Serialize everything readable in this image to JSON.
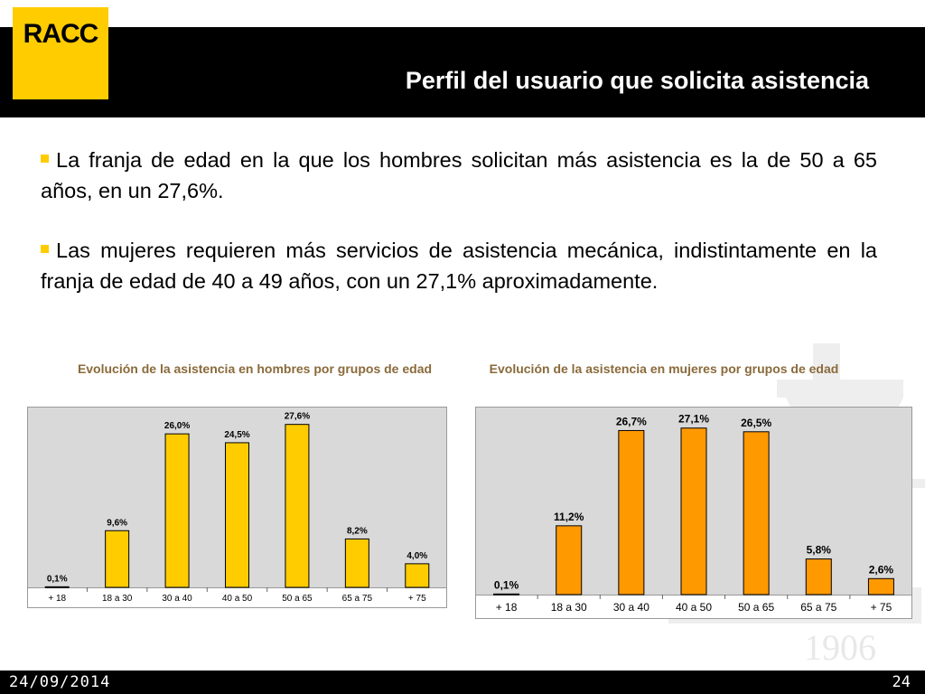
{
  "header": {
    "logo_text": "RACC",
    "title": "Perfil del usuario que solicita asistencia"
  },
  "bullets": [
    "La franja de edad en la que los hombres solicitan más asistencia es la de 50 a 65 años, en un 27,6%.",
    "Las mujeres requieren más servicios de asistencia mecánica, indistintamente en la franja de edad de 40 a 49 años, con un 27,1% aproximadamente."
  ],
  "watermark_text": "1906",
  "colors": {
    "accent": "#ffcc00",
    "men_bar": "#ffcc00",
    "women_bar": "#ff9900",
    "plot_bg": "#d9d9d9"
  },
  "chart_data": [
    {
      "type": "bar",
      "title": "Evolución de la asistencia en hombres por grupos de edad",
      "categories": [
        "+ 18",
        "18 a 30",
        "30 a 40",
        "40 a 50",
        "50 a 65",
        "65 a 75",
        "+ 75"
      ],
      "values": [
        0.1,
        9.6,
        26.0,
        24.5,
        27.6,
        8.2,
        4.0
      ],
      "labels": [
        "0,1%",
        "9,6%",
        "26,0%",
        "24,5%",
        "27,6%",
        "8,2%",
        "4,0%"
      ],
      "ylim": [
        0,
        30
      ],
      "grid": false
    },
    {
      "type": "bar",
      "title": "Evolución de la asistencia en mujeres por grupos de edad",
      "categories": [
        "+ 18",
        "18 a 30",
        "30 a 40",
        "40 a 50",
        "50 a 65",
        "65 a 75",
        "+ 75"
      ],
      "values": [
        0.1,
        11.2,
        26.7,
        27.1,
        26.5,
        5.8,
        2.6
      ],
      "labels": [
        "0,1%",
        "11,2%",
        "26,7%",
        "27,1%",
        "26,5%",
        "5,8%",
        "2,6%"
      ],
      "ylim": [
        0,
        30
      ],
      "grid": false
    }
  ],
  "footer": {
    "date": "24/09/2014",
    "page": "24"
  }
}
